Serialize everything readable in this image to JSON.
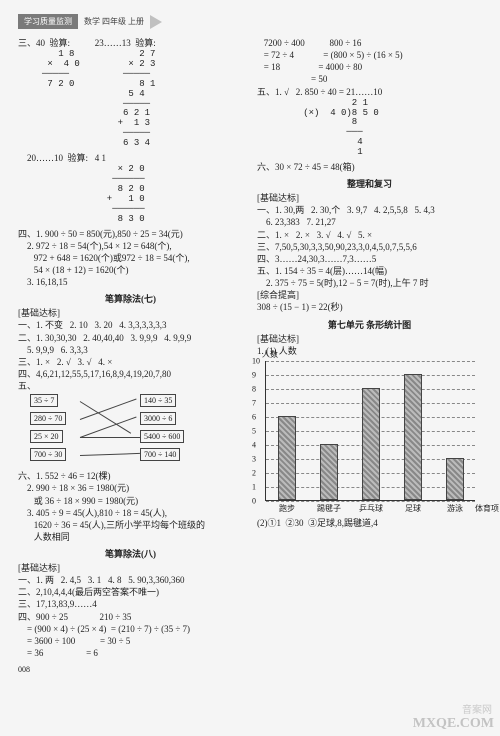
{
  "header": {
    "band": "学习质量监测",
    "sub": "数学 四年级 上册"
  },
  "left": {
    "l1": "三、40  验算:           23……13  验算:",
    "calc1": "   1 8            2 7\n ×  4 0         × 2 3\n─────          ─────\n 7 2 0            8 1\n                5 4\n               ─────\n               6 2 1\n              +  1 3\n               ─────\n               6 3 4",
    "l2": "    20……10  验算:   4 1",
    "calc2": "              × 2 0\n             ──────\n              8 2 0\n            +   1 0\n             ──────\n              8 3 0",
    "l3": "四、1. 900 ÷ 50 = 850(元),850 ÷ 25 = 34(元)",
    "l4": "    2. 972 ÷ 18 = 54(个),54 × 12 = 648(个),",
    "l5": "       972 + 648 = 1620(个)或972 ÷ 18 = 54(个),",
    "l6": "       54 × (18 + 12) = 1620(个)",
    "l7": "    3. 16,18,15",
    "sec1": "笔算除法(七)",
    "sub1": "[基础达标]",
    "l8": "一、1. 不变   2. 10   3. 20   4. 3,3,3,3,3,3",
    "l9": "二、1. 30,30,30   2. 40,40,40   3. 9,9,9   4. 9,9,9",
    "l10": "    5. 9,9,9   6. 3,3,3",
    "l11": "三、1. ×   2. √   3. √   4. ×",
    "l12": "四、4,6,21,12,55,5,17,16,8,9,4,19,20,7,80",
    "l13": "五、",
    "pairs": {
      "left": [
        "35 ÷ 7",
        "280 ÷ 70",
        "25 × 20",
        "700 ÷ 30"
      ],
      "right": [
        "140 ÷ 35",
        "3000 ÷ 6",
        "5400 ÷ 600",
        "700 ÷ 140"
      ]
    },
    "l14": "六、1. 552 ÷ 46 = 12(棵)",
    "l15": "    2. 990 ÷ 18 × 36 = 1980(元)",
    "l16": "       或 36 ÷ 18 × 990 = 1980(元)",
    "l17": "    3. 405 ÷ 9 = 45(人),810 ÷ 18 = 45(人),",
    "l18": "       1620 ÷ 36 = 45(人),三所小学平均每个班级的",
    "l19": "       人数相同",
    "sec2": "笔算除法(八)",
    "sub2": "[基础达标]",
    "l20": "一、1. 两   2. 4,5   3. 1   4. 8   5. 90,3,360,360",
    "l21": "二、2,10,4,4,4(最后两空答案不唯一)",
    "l22": "三、17,13,83,9……4",
    "l23": "四、900 ÷ 25              210 ÷ 35",
    "l24": "    = (900 × 4) ÷ (25 × 4)  = (210 ÷ 7) ÷ (35 ÷ 7)",
    "l25": "    = 3600 ÷ 100           = 30 ÷ 5",
    "l26": "    = 36                   = 6"
  },
  "right": {
    "l1": "   7200 ÷ 400           800 ÷ 16",
    "l2": "   = 72 ÷ 4             = (800 × 5) ÷ (16 × 5)",
    "l3": "   = 18                 = 4000 ÷ 80",
    "l4": "                        = 50",
    "l5": "五、1. √   2. 850 ÷ 40 = 21……10",
    "calc1": "            2 1\n   (×)  4 0)8 5 0\n            8\n           ───\n             4\n             1",
    "l6": "六、30 × 72 ÷ 45 = 48(箱)",
    "sec1": "整理和复习",
    "sub1": "[基础达标]",
    "l7": "一、1. 30,两   2. 30,个   3. 9,7   4. 2,5,5,8   5. 4,3",
    "l8": "    6. 23,383   7. 21,27",
    "l9": "二、1. ×   2. ×   3. √   4. √   5. ×",
    "l10": "三、7,50,5,30,3,3,50,90,23,3,0,4,5,0,7,5,5,6",
    "l11": "四、3……24,30,3……7,3……5",
    "l12": "五、1. 154 ÷ 35 = 4(层)……14(幅)",
    "l13": "    2. 375 ÷ 75 = 5(时),12 − 5 = 7(时),上午 7 时",
    "sub2": "[综合提高]",
    "l14": "308 ÷ (15 − 1) = 22(秒)",
    "sec2": "第七单元  条形统计图",
    "sub3": "[基础达标]",
    "l15": "1. (1) 人数",
    "chart": {
      "ymax": 10,
      "yticks": [
        0,
        1,
        2,
        3,
        4,
        5,
        6,
        7,
        8,
        9,
        10
      ],
      "categories": [
        "跑步",
        "踢毽子",
        "乒乓球",
        "足球",
        "游泳"
      ],
      "values": [
        6,
        4,
        8,
        9,
        3
      ],
      "xlabel": "体育项目"
    },
    "l16": "(2)①1  ②30  ③足球,8,踢毽道,4"
  },
  "pagenum": "008",
  "wm1": "音案网",
  "wm2": "MXQE.COM"
}
